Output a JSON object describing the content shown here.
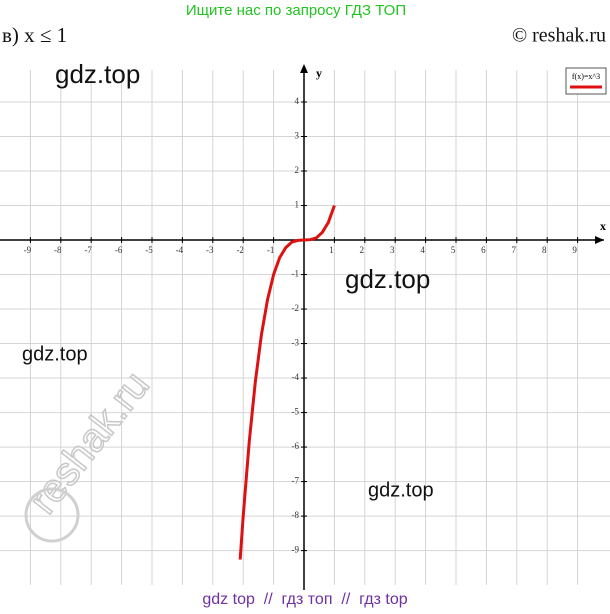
{
  "header": {
    "banner": "Ищите нас по запросу ГДЗ ТОП",
    "task": "в) x ≤ 1",
    "copyright": "© reshak.ru"
  },
  "watermarks": [
    "gdz.top",
    "gdz.top",
    "gdz.top",
    "gdz.top",
    "reshak.ru"
  ],
  "footer": "gdz top  //  гдз топ  //  гдз top",
  "chart_data": {
    "type": "line",
    "x_label": "x",
    "y_label": "y",
    "x": [
      -2.1,
      -2,
      -1.8,
      -1.6,
      -1.4,
      -1.2,
      -1,
      -0.8,
      -0.6,
      -0.4,
      -0.2,
      0,
      0.2,
      0.4,
      0.6,
      0.8,
      1
    ],
    "series": [
      {
        "name": "f(x)=x^3",
        "color": "#dd1111",
        "values": [
          -9.26,
          -8,
          -5.83,
          -4.1,
          -2.74,
          -1.73,
          -1,
          -0.51,
          -0.22,
          -0.06,
          -0.01,
          0,
          0.01,
          0.06,
          0.22,
          0.51,
          1
        ]
      }
    ],
    "xlim": [
      -10,
      10
    ],
    "ylim": [
      -10.2,
      5
    ],
    "xticks": [
      -9,
      -8,
      -7,
      -6,
      -5,
      -4,
      -3,
      -2,
      -1,
      1,
      2,
      3,
      4,
      5,
      6,
      7,
      8,
      9
    ],
    "yticks": [
      -9,
      -8,
      -7,
      -6,
      -5,
      -4,
      -3,
      -2,
      -1,
      1,
      2,
      3,
      4
    ],
    "grid": true,
    "legend": "top-right"
  }
}
